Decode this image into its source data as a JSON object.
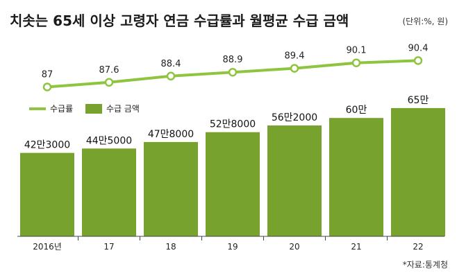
{
  "chart_data": {
    "type": "bar",
    "title": "치솟는 65세 이상 고령자 연금 수급률과 월평균 수급 금액",
    "unit_note": "(단위:%, 원)",
    "source": "*자료:통계청",
    "categories": [
      "2016년",
      "17",
      "18",
      "19",
      "20",
      "21",
      "22"
    ],
    "series": [
      {
        "name": "수급률",
        "kind": "line",
        "values": [
          87,
          87.6,
          88.4,
          88.9,
          89.4,
          90.1,
          90.4
        ],
        "labels": [
          "87",
          "87.6",
          "88.4",
          "88.9",
          "89.4",
          "90.1",
          "90.4"
        ]
      },
      {
        "name": "수급 금액",
        "kind": "bar",
        "values": [
          423000,
          445000,
          478000,
          528000,
          562000,
          600000,
          650000
        ],
        "labels": [
          "42만3000",
          "44만5000",
          "47만8000",
          "52만8000",
          "56만2000",
          "60만",
          "65만"
        ]
      }
    ],
    "legend": {
      "line": "수급률",
      "bar": "수급 금액",
      "placement": "left"
    },
    "line_ylim": [
      85,
      91.5
    ],
    "bar_ylim": [
      0,
      720000
    ],
    "grid": false,
    "colors": {
      "bar": "#77a22d",
      "line": "#8ec43f",
      "marker_fill": "#ffffff",
      "title": "#1a1a1a",
      "axis": "#444444"
    }
  }
}
